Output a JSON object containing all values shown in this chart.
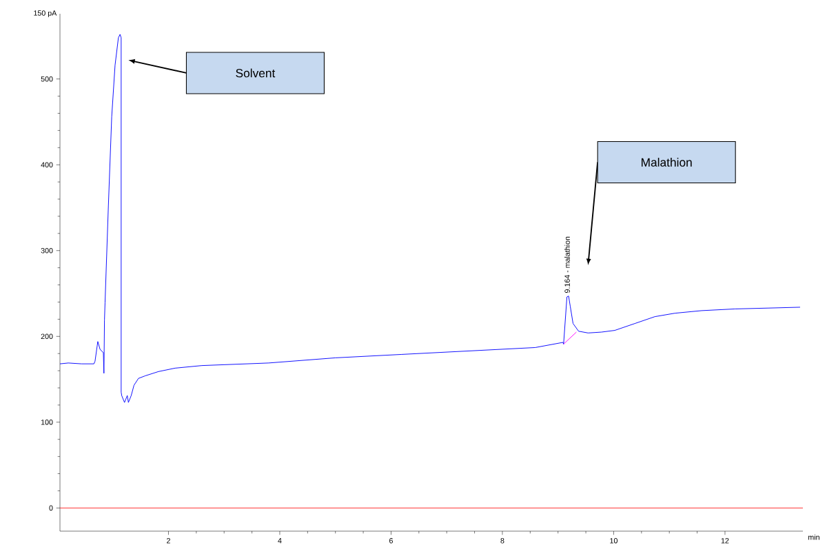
{
  "chart_data": {
    "type": "line",
    "ylabel": "150 pA",
    "xlabel": "min",
    "xlim": [
      0.05,
      13.4
    ],
    "ylim": [
      -27,
      576
    ],
    "xticks": [
      2,
      4,
      6,
      8,
      10,
      12
    ],
    "yticks": [
      0,
      100,
      200,
      300,
      400,
      500
    ],
    "line_style": "solid",
    "series": [
      {
        "color": "#0000ff",
        "x": [
          0.05,
          0.2,
          0.44,
          0.66,
          0.68,
          0.73,
          0.77,
          0.83,
          0.84,
          0.85,
          0.86,
          0.92,
          0.98,
          1.04,
          1.1,
          1.13,
          1.15,
          1.15,
          1.16,
          1.21,
          1.26,
          1.28,
          1.33,
          1.38,
          1.46,
          1.58,
          1.82,
          2.12,
          2.6,
          3.8,
          5.0,
          6.19,
          7.39,
          8.59,
          9.09,
          9.1,
          9.16,
          9.19,
          9.22,
          9.27,
          9.37,
          9.54,
          9.78,
          10.02,
          10.38,
          10.74,
          11.1,
          11.58,
          12.18,
          12.78,
          13.35
        ],
        "values": [
          168,
          169,
          168,
          168,
          171,
          194,
          185,
          181,
          157,
          219,
          239,
          352,
          456,
          516,
          548,
          552,
          548,
          135,
          131,
          123,
          131,
          123,
          131,
          143,
          151,
          154,
          159,
          163,
          166,
          169,
          175,
          179,
          183,
          187,
          193,
          191,
          246,
          247,
          235,
          215,
          206,
          204,
          205,
          207,
          215,
          223,
          227,
          230,
          232,
          233,
          234
        ]
      },
      {
        "color": "#ff00ff",
        "x": [
          9.1,
          9.33
        ],
        "values": [
          191,
          205
        ]
      }
    ],
    "ref_lines": [
      {
        "axis": "y",
        "value": 0,
        "color": "#ff0000"
      }
    ],
    "annotations": [
      "Solvent",
      "Malathion",
      {
        "text": "9.164 - malathion",
        "x": 9.164,
        "y": 247
      }
    ]
  }
}
